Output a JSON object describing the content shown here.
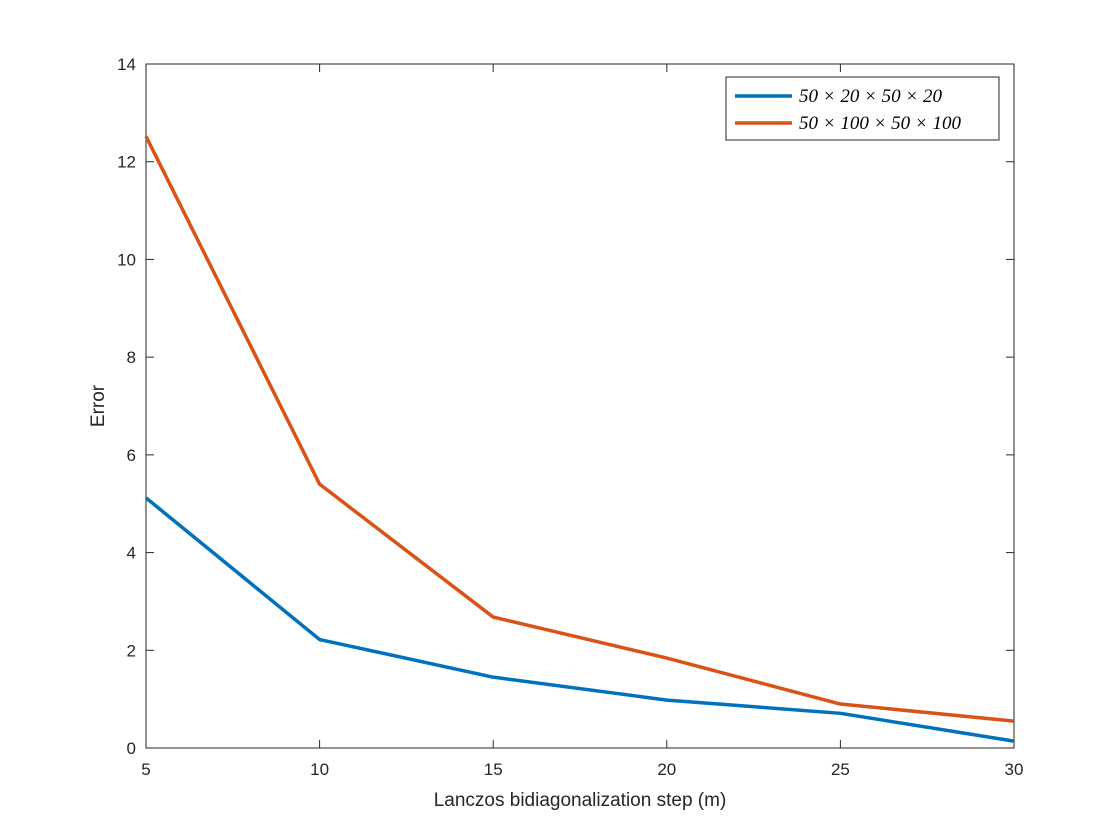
{
  "chart_data": {
    "type": "line",
    "title": "",
    "xlabel": "Lanczos bidiagonalization step (m)",
    "ylabel": "Error",
    "xlim": [
      5,
      30
    ],
    "ylim": [
      0,
      14
    ],
    "xticks": [
      5,
      10,
      15,
      20,
      25,
      30
    ],
    "yticks": [
      0,
      2,
      4,
      6,
      8,
      10,
      12,
      14
    ],
    "grid": false,
    "legend_position": "top-right",
    "x": [
      5,
      10,
      15,
      20,
      25,
      30
    ],
    "series": [
      {
        "name": "50 × 20 × 50 × 20",
        "color": "#0072BD",
        "values": [
          5.12,
          2.22,
          1.45,
          0.98,
          0.71,
          0.14
        ]
      },
      {
        "name": "50 × 100 × 50 × 100",
        "color": "#D95319",
        "values": [
          12.52,
          5.4,
          2.68,
          1.84,
          0.9,
          0.55
        ]
      }
    ]
  }
}
